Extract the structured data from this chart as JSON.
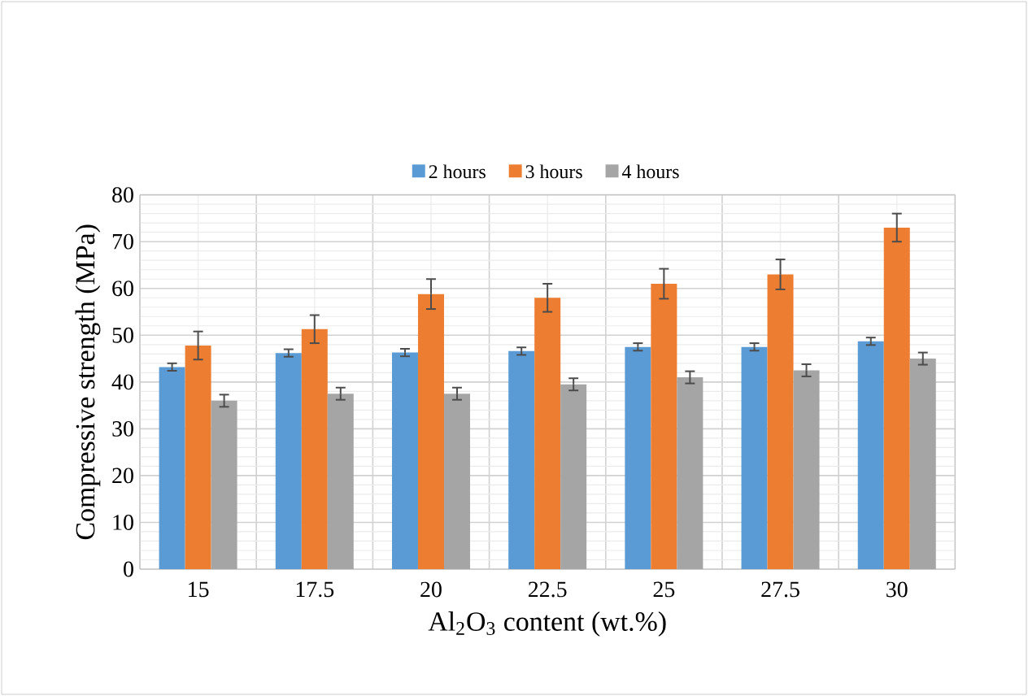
{
  "chart_data": {
    "type": "bar",
    "xlabel": "Al$_{2}$O$_{3}$ content (wt.%)",
    "ylabel": "Compressive strength (MPa)",
    "categories": [
      "15",
      "17.5",
      "20",
      "22.5",
      "25",
      "27.5",
      "30"
    ],
    "series": [
      {
        "name": "2 hours",
        "color": "#5b9bd5",
        "values": [
          43.2,
          46.2,
          46.3,
          46.6,
          47.5,
          47.5,
          48.7
        ],
        "errors": [
          0.8,
          0.8,
          0.8,
          0.8,
          0.8,
          0.8,
          0.8
        ]
      },
      {
        "name": "3 hours",
        "color": "#ed7d31",
        "values": [
          47.8,
          51.3,
          58.8,
          58,
          61,
          63,
          73
        ],
        "errors": [
          3,
          3,
          3.2,
          3,
          3.2,
          3.2,
          3
        ]
      },
      {
        "name": "4 hours",
        "color": "#a5a5a5",
        "values": [
          36,
          37.5,
          37.5,
          39.5,
          41,
          42.5,
          45
        ],
        "errors": [
          1.3,
          1.3,
          1.3,
          1.3,
          1.3,
          1.3,
          1.3
        ]
      }
    ],
    "ylim": [
      0,
      80
    ],
    "yticks": [
      0,
      10,
      20,
      30,
      40,
      50,
      60,
      70,
      80
    ],
    "grid": true,
    "legend": "top"
  }
}
